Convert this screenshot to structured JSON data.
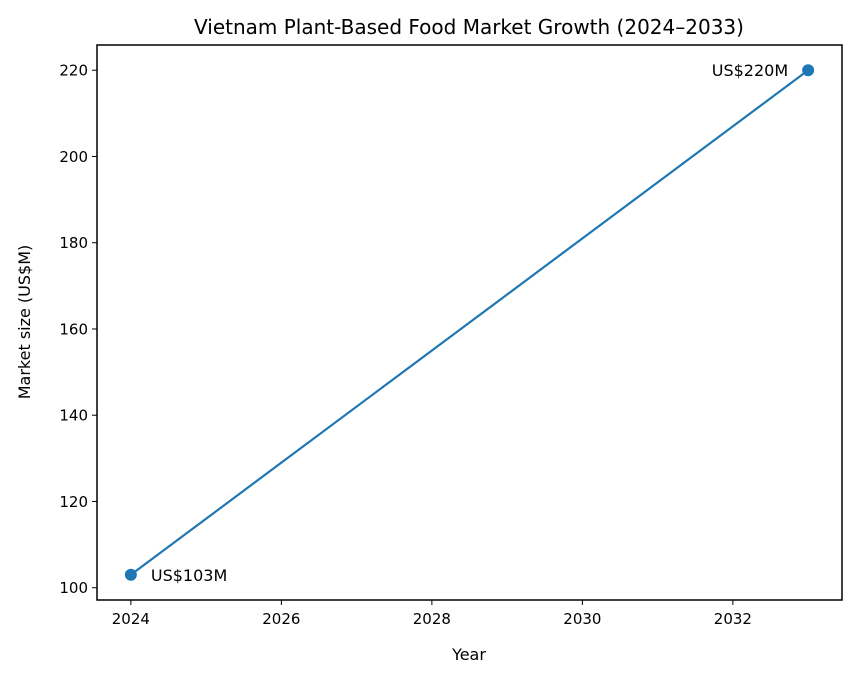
{
  "chart_data": {
    "type": "line",
    "title": "Vietnam Plant-Based Food Market Growth (2024–2033)",
    "xlabel": "Year",
    "ylabel": "Market size (US$M)",
    "x": [
      2024,
      2033
    ],
    "series": [
      {
        "name": "Market size",
        "values": [
          103,
          220
        ],
        "color": "#1f77b4",
        "marker": "circle"
      }
    ],
    "annotations": [
      {
        "x": 2024,
        "y": 103,
        "text": "US$103M"
      },
      {
        "x": 2033,
        "y": 220,
        "text": "US$220M"
      }
    ],
    "xticks": [
      2024,
      2026,
      2028,
      2030,
      2032
    ],
    "yticks": [
      100,
      120,
      140,
      160,
      180,
      200,
      220
    ],
    "xlim": [
      2023.55,
      2033.45
    ],
    "ylim": [
      97.15,
      225.85
    ],
    "grid": false,
    "legend": null
  }
}
